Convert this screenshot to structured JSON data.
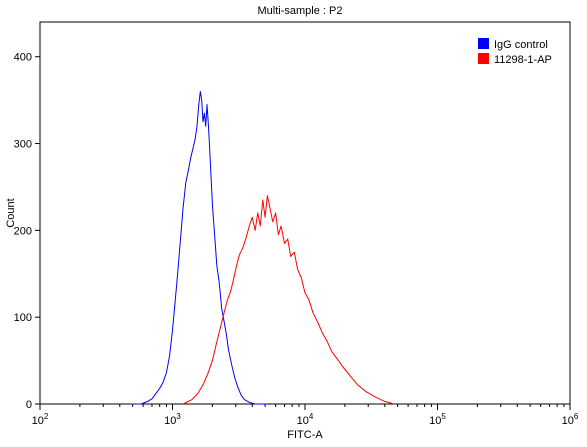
{
  "chart_data": {
    "type": "line",
    "title": "Multi-sample : P2",
    "xlabel": "FITC-A",
    "ylabel": "Count",
    "xscale": "log",
    "xlim": [
      100,
      1000000
    ],
    "ylim": [
      0,
      440
    ],
    "yticks": [
      0,
      100,
      200,
      300,
      400
    ],
    "xticks": [
      {
        "value": 100,
        "base": "10",
        "exp": "2"
      },
      {
        "value": 1000,
        "base": "10",
        "exp": "3"
      },
      {
        "value": 10000,
        "base": "10",
        "exp": "4"
      },
      {
        "value": 100000,
        "base": "10",
        "exp": "5"
      },
      {
        "value": 1000000,
        "base": "10",
        "exp": "6"
      }
    ],
    "legend_position": "top-right",
    "series": [
      {
        "name": "IgG control",
        "color": "#0000ff",
        "x": [
          480,
          580,
          650,
          700,
          750,
          800,
          850,
          900,
          950,
          1000,
          1050,
          1100,
          1150,
          1200,
          1260,
          1320,
          1380,
          1430,
          1480,
          1530,
          1580,
          1620,
          1660,
          1700,
          1740,
          1780,
          1820,
          1860,
          1900,
          1950,
          2000,
          2080,
          2160,
          2250,
          2350,
          2450,
          2550,
          2650,
          2800,
          2950,
          3100,
          3300,
          3500,
          3800,
          4200,
          4600,
          5200
        ],
        "y": [
          0,
          0,
          3,
          6,
          12,
          18,
          25,
          36,
          55,
          85,
          120,
          155,
          190,
          225,
          255,
          270,
          285,
          295,
          305,
          320,
          345,
          360,
          350,
          325,
          335,
          320,
          345,
          325,
          300,
          265,
          230,
          195,
          160,
          140,
          110,
          95,
          80,
          62,
          45,
          30,
          20,
          10,
          5,
          2,
          0,
          0,
          0
        ]
      },
      {
        "name": "11298-1-AP",
        "color": "#ff0000",
        "x": [
          1200,
          1400,
          1550,
          1700,
          1850,
          2000,
          2150,
          2300,
          2450,
          2600,
          2750,
          2900,
          3050,
          3200,
          3400,
          3600,
          3800,
          4000,
          4200,
          4400,
          4600,
          4800,
          5000,
          5200,
          5450,
          5700,
          6000,
          6300,
          6600,
          7000,
          7400,
          7800,
          8300,
          8800,
          9400,
          10000,
          10700,
          11500,
          12400,
          13500,
          14700,
          16000,
          17500,
          19500,
          22000,
          25000,
          29000,
          34000,
          40000,
          47000
        ],
        "y": [
          0,
          5,
          12,
          22,
          35,
          50,
          70,
          88,
          105,
          120,
          130,
          145,
          160,
          172,
          180,
          192,
          205,
          215,
          200,
          220,
          205,
          235,
          215,
          240,
          225,
          210,
          220,
          195,
          205,
          185,
          190,
          170,
          175,
          155,
          145,
          128,
          120,
          105,
          95,
          82,
          72,
          60,
          52,
          42,
          32,
          22,
          14,
          8,
          3,
          0
        ]
      }
    ]
  }
}
